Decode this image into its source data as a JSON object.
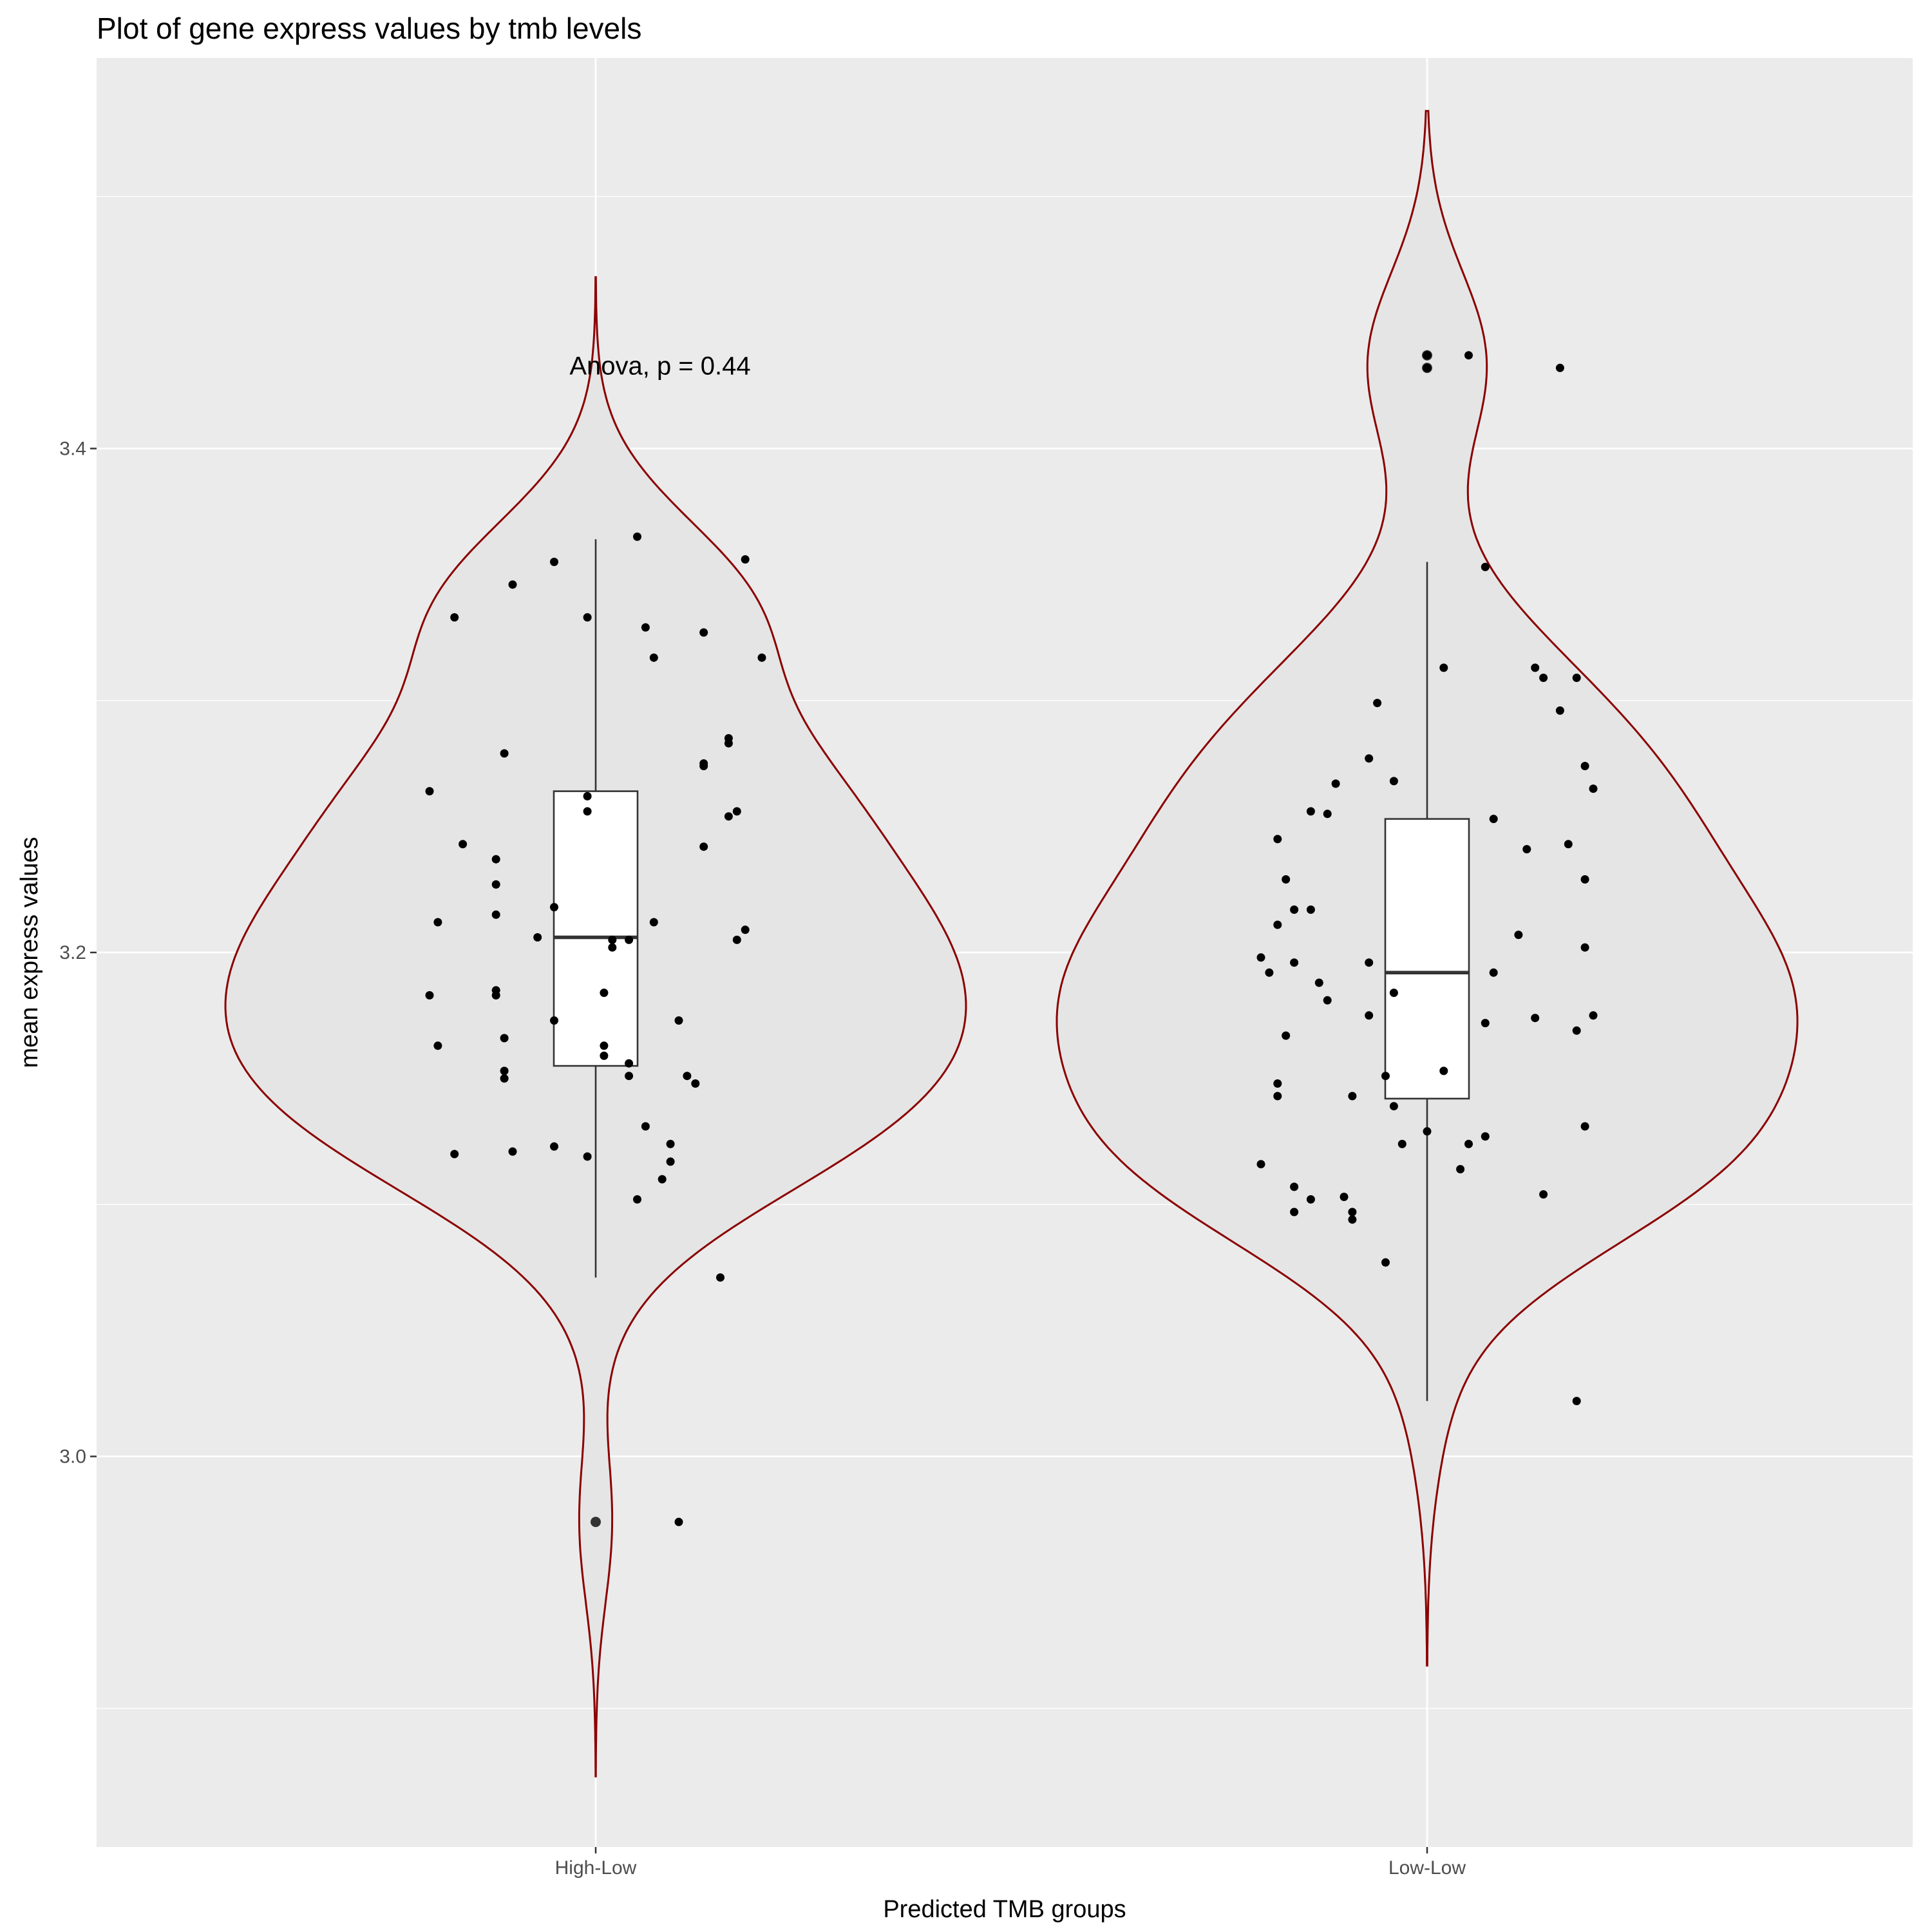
{
  "chart_data": {
    "type": "violin",
    "title": "Plot of gene express values by tmb levels",
    "xlabel": "Predicted TMB groups",
    "ylabel": "mean express values",
    "categories": [
      "High-Low",
      "Low-Low"
    ],
    "ylim": [
      2.845,
      3.555
    ],
    "y_ticks": [
      3.0,
      3.2,
      3.4
    ],
    "y_tick_labels": [
      "3.0",
      "3.2",
      "3.4"
    ],
    "annotation": {
      "text": "Anova, p = 0.44",
      "x_category": "High-Low",
      "y": 3.433
    },
    "colors": {
      "panel": "#EBEBEB",
      "grid": "#FFFFFF",
      "violin_fill": "#E5E5E5",
      "violin_outline": "#8B0000",
      "box_fill": "#FFFFFF",
      "point": "#000000"
    },
    "groups": [
      {
        "name": "High-Low",
        "violin_range": [
          2.873,
          3.468
        ],
        "box": {
          "lower_whisker": 3.071,
          "q1": 3.155,
          "median": 3.206,
          "q3": 3.264,
          "upper_whisker": 3.364
        },
        "outliers": [
          2.974
        ],
        "points": [
          [
            -0.2,
            3.264
          ],
          [
            -0.2,
            3.183
          ],
          [
            -0.19,
            3.163
          ],
          [
            -0.19,
            3.212
          ],
          [
            -0.17,
            3.12
          ],
          [
            -0.17,
            3.333
          ],
          [
            -0.16,
            3.243
          ],
          [
            -0.12,
            3.227
          ],
          [
            -0.12,
            3.183
          ],
          [
            -0.12,
            3.215
          ],
          [
            -0.12,
            3.185
          ],
          [
            -0.12,
            3.237
          ],
          [
            -0.11,
            3.153
          ],
          [
            -0.11,
            3.279
          ],
          [
            -0.11,
            3.15
          ],
          [
            -0.11,
            3.166
          ],
          [
            -0.1,
            3.346
          ],
          [
            -0.1,
            3.121
          ],
          [
            -0.07,
            3.206
          ],
          [
            -0.05,
            3.218
          ],
          [
            -0.05,
            3.355
          ],
          [
            -0.05,
            3.123
          ],
          [
            -0.05,
            3.173
          ],
          [
            -0.01,
            3.256
          ],
          [
            -0.01,
            3.333
          ],
          [
            -0.01,
            3.119
          ],
          [
            -0.01,
            3.262
          ],
          [
            0.01,
            3.159
          ],
          [
            0.01,
            3.163
          ],
          [
            0.01,
            3.184
          ],
          [
            0.02,
            3.202
          ],
          [
            0.02,
            3.205
          ],
          [
            0.04,
            3.151
          ],
          [
            0.04,
            3.156
          ],
          [
            0.04,
            3.205
          ],
          [
            0.05,
            3.102
          ],
          [
            0.05,
            3.365
          ],
          [
            0.06,
            3.329
          ],
          [
            0.06,
            3.131
          ],
          [
            0.07,
            3.317
          ],
          [
            0.07,
            3.212
          ],
          [
            0.08,
            3.11
          ],
          [
            0.09,
            3.124
          ],
          [
            0.09,
            3.117
          ],
          [
            0.1,
            3.173
          ],
          [
            0.1,
            2.974
          ],
          [
            0.11,
            3.151
          ],
          [
            0.12,
            3.148
          ],
          [
            0.13,
            3.327
          ],
          [
            0.13,
            3.242
          ],
          [
            0.13,
            3.274
          ],
          [
            0.13,
            3.275
          ],
          [
            0.15,
            3.071
          ],
          [
            0.16,
            3.254
          ],
          [
            0.16,
            3.285
          ],
          [
            0.16,
            3.283
          ],
          [
            0.17,
            3.205
          ],
          [
            0.17,
            3.256
          ],
          [
            0.18,
            3.209
          ],
          [
            0.18,
            3.356
          ],
          [
            0.2,
            3.317
          ]
        ]
      },
      {
        "name": "Low-Low",
        "violin_range": [
          2.917,
          3.534
        ],
        "box": {
          "lower_whisker": 3.022,
          "q1": 3.142,
          "median": 3.192,
          "q3": 3.253,
          "upper_whisker": 3.355
        },
        "outliers": [
          3.432,
          3.437
        ],
        "points": [
          [
            -0.2,
            3.116
          ],
          [
            -0.2,
            3.198
          ],
          [
            -0.19,
            3.192
          ],
          [
            -0.18,
            3.143
          ],
          [
            -0.18,
            3.148
          ],
          [
            -0.18,
            3.211
          ],
          [
            -0.18,
            3.245
          ],
          [
            -0.17,
            3.229
          ],
          [
            -0.17,
            3.167
          ],
          [
            -0.16,
            3.217
          ],
          [
            -0.16,
            3.107
          ],
          [
            -0.16,
            3.196
          ],
          [
            -0.16,
            3.097
          ],
          [
            -0.14,
            3.256
          ],
          [
            -0.14,
            3.102
          ],
          [
            -0.14,
            3.217
          ],
          [
            -0.13,
            3.188
          ],
          [
            -0.12,
            3.255
          ],
          [
            -0.12,
            3.181
          ],
          [
            -0.11,
            3.267
          ],
          [
            -0.1,
            3.103
          ],
          [
            -0.09,
            3.143
          ],
          [
            -0.09,
            3.094
          ],
          [
            -0.09,
            3.097
          ],
          [
            -0.07,
            3.277
          ],
          [
            -0.07,
            3.196
          ],
          [
            -0.07,
            3.175
          ],
          [
            -0.06,
            3.299
          ],
          [
            -0.05,
            3.077
          ],
          [
            -0.05,
            3.151
          ],
          [
            -0.04,
            3.139
          ],
          [
            -0.04,
            3.184
          ],
          [
            -0.04,
            3.268
          ],
          [
            -0.03,
            3.124
          ],
          [
            0.0,
            3.432
          ],
          [
            0.0,
            3.437
          ],
          [
            0.0,
            3.129
          ],
          [
            0.02,
            3.153
          ],
          [
            0.02,
            3.313
          ],
          [
            0.04,
            3.114
          ],
          [
            0.05,
            3.437
          ],
          [
            0.05,
            3.124
          ],
          [
            0.07,
            3.127
          ],
          [
            0.07,
            3.172
          ],
          [
            0.07,
            3.353
          ],
          [
            0.08,
            3.192
          ],
          [
            0.08,
            3.253
          ],
          [
            0.11,
            3.207
          ],
          [
            0.12,
            3.241
          ],
          [
            0.13,
            3.313
          ],
          [
            0.13,
            3.174
          ],
          [
            0.14,
            3.104
          ],
          [
            0.14,
            3.309
          ],
          [
            0.16,
            3.296
          ],
          [
            0.16,
            3.432
          ],
          [
            0.17,
            3.243
          ],
          [
            0.18,
            3.022
          ],
          [
            0.18,
            3.169
          ],
          [
            0.18,
            3.309
          ],
          [
            0.19,
            3.274
          ],
          [
            0.19,
            3.229
          ],
          [
            0.19,
            3.131
          ],
          [
            0.19,
            3.202
          ],
          [
            0.2,
            3.265
          ],
          [
            0.2,
            3.175
          ]
        ]
      }
    ]
  }
}
